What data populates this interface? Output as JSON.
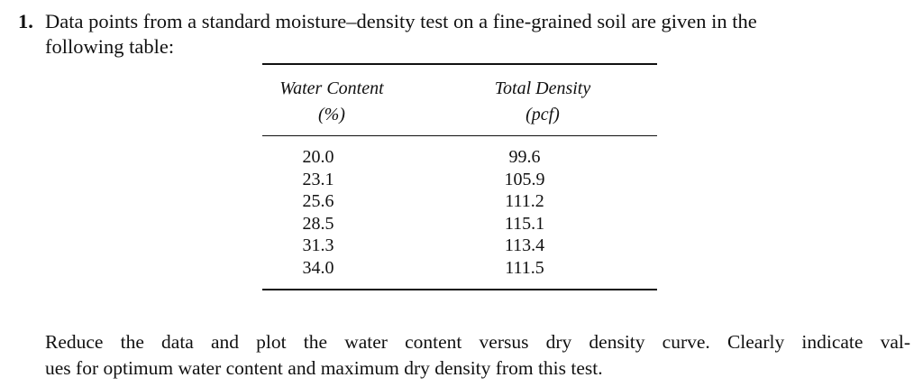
{
  "problem": {
    "number": "1.",
    "intro_line_1": "Data points from a standard moisture–density test on a fine-grained soil are given in the",
    "intro_line_2": "following table:"
  },
  "table": {
    "columns": [
      {
        "header_line_1": "Water Content",
        "header_line_2": "(%)"
      },
      {
        "header_line_1": "Total Density",
        "header_line_2": "(pcf)"
      }
    ],
    "rows": [
      [
        "20.0",
        "99.6"
      ],
      [
        "23.1",
        "105.9"
      ],
      [
        "25.6",
        "111.2"
      ],
      [
        "28.5",
        "115.1"
      ],
      [
        "31.3",
        "113.4"
      ],
      [
        "34.0",
        "111.5"
      ]
    ]
  },
  "instruction": {
    "line_1": "Reduce the data and plot the water content versus dry density curve. Clearly indicate val-",
    "line_2": "ues for optimum water content and maximum dry density from this test."
  }
}
